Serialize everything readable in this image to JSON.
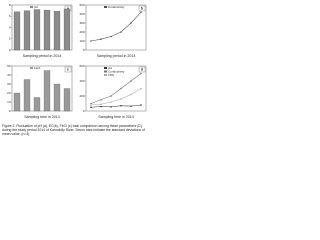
{
  "chart_data": [
    {
      "type": "bar",
      "panel": "a",
      "xlabel": "Sampling period in 2014",
      "categories": [
        null,
        null,
        null,
        null,
        null,
        null
      ],
      "series": [
        {
          "name": "pH",
          "color": "#8c8c8c",
          "values": [
            6.8,
            7.0,
            7.2,
            7.1,
            6.9,
            7.3
          ]
        }
      ],
      "ylim": [
        0,
        8
      ],
      "yticks": [
        0,
        2,
        4,
        6,
        8
      ]
    },
    {
      "type": "line",
      "panel": "b",
      "xlabel": "Sampling period in 2014",
      "categories": [
        null,
        null,
        null,
        null,
        null,
        null
      ],
      "series": [
        {
          "name": "Conductivity",
          "color": "#555555",
          "values": [
            100,
            120,
            150,
            200,
            300,
            420
          ]
        }
      ],
      "ylim": [
        0,
        500
      ],
      "yticks": [
        0,
        100,
        200,
        300,
        400,
        500
      ]
    },
    {
      "type": "bar",
      "panel": "c",
      "xlabel": "Sampling time in 2014",
      "categories": [
        null,
        null,
        null,
        null,
        null,
        null
      ],
      "series": [
        {
          "name": "FeCl",
          "color": "#9a9a9a",
          "values": [
            20,
            35,
            15,
            45,
            30,
            25
          ]
        }
      ],
      "ylim": [
        0,
        50
      ],
      "yticks": [
        0,
        10,
        20,
        30,
        40,
        50
      ]
    },
    {
      "type": "line",
      "panel": "d",
      "xlabel": "Sampling time in 2014",
      "categories": [
        null,
        null,
        null,
        null,
        null,
        null
      ],
      "series": [
        {
          "name": "pH",
          "color": "#333333",
          "values": [
            50,
            60,
            55,
            70,
            65,
            80
          ]
        },
        {
          "name": "Conductivity",
          "color": "#777777",
          "values": [
            100,
            150,
            200,
            300,
            400,
            500
          ]
        },
        {
          "name": "TDS",
          "color": "#aaaaaa",
          "values": [
            80,
            90,
            120,
            160,
            220,
            300
          ]
        }
      ],
      "ylim": [
        0,
        600
      ],
      "yticks": [
        0,
        200,
        400,
        600
      ]
    }
  ],
  "caption": "Figure 2: Fluctuation of pH (a), EC(b), FeCl (c) total comparison among these parameters (D) during the study period 2014 of Karnafully River. Secon bars indicate the standard deviations of mean value. (n=3)"
}
